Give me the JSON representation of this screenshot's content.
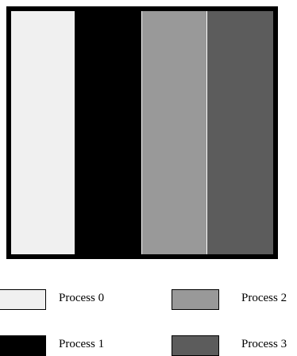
{
  "figure": {
    "processes": [
      {
        "label": "Process 0",
        "color": "#f0f0f0"
      },
      {
        "label": "Process 1",
        "color": "#000000"
      },
      {
        "label": "Process 2",
        "color": "#999999"
      },
      {
        "label": "Process 3",
        "color": "#5c5c5c"
      }
    ],
    "strip_order": [
      0,
      1,
      2,
      3
    ]
  },
  "legend": {
    "items": [
      {
        "label": "Process 0",
        "color": "#f0f0f0"
      },
      {
        "label": "Process 1",
        "color": "#000000"
      },
      {
        "label": "Process 2",
        "color": "#999999"
      },
      {
        "label": "Process 3",
        "color": "#5c5c5c"
      }
    ]
  }
}
